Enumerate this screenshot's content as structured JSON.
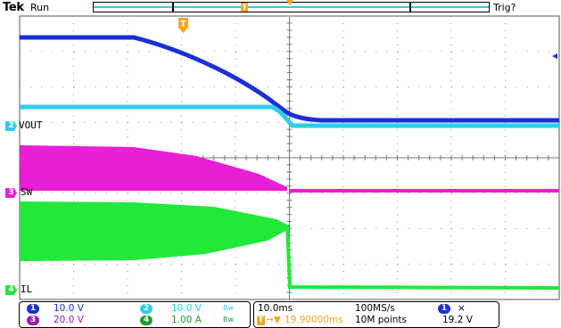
{
  "header": {
    "brand": "Tek",
    "run_state": "Run",
    "trigger_state": "Trig?",
    "trigger_marker": "T"
  },
  "channels": [
    {
      "id": "2",
      "label": "VOUT",
      "color": "#29d0e8"
    },
    {
      "id": "3",
      "label": "SW",
      "color": "#e81fd6"
    },
    {
      "id": "4",
      "label": "IL",
      "color": "#22e83a"
    }
  ],
  "trace_colors": {
    "ch1": "#1a2fd6",
    "ch2": "#29d0e8",
    "ch3": "#e81fd6",
    "ch4": "#22e83a",
    "trigger": "#f5a623"
  },
  "readout": {
    "ch1": {
      "num": "1",
      "scale": "10.0 V"
    },
    "ch2": {
      "num": "2",
      "scale": "10.0 V",
      "bw": "Bw"
    },
    "ch3": {
      "num": "3",
      "scale": "20.0 V"
    },
    "ch4": {
      "num": "4",
      "scale": "1.00 A",
      "bw": "Bw"
    },
    "timebase": "10.0ms",
    "sample_rate": "100MS/s",
    "trigger_delay": "19.90000ms",
    "record_length": "10M points",
    "trigger_source": "1",
    "trigger_slope": "⨯",
    "trigger_level": "19.2 V"
  }
}
